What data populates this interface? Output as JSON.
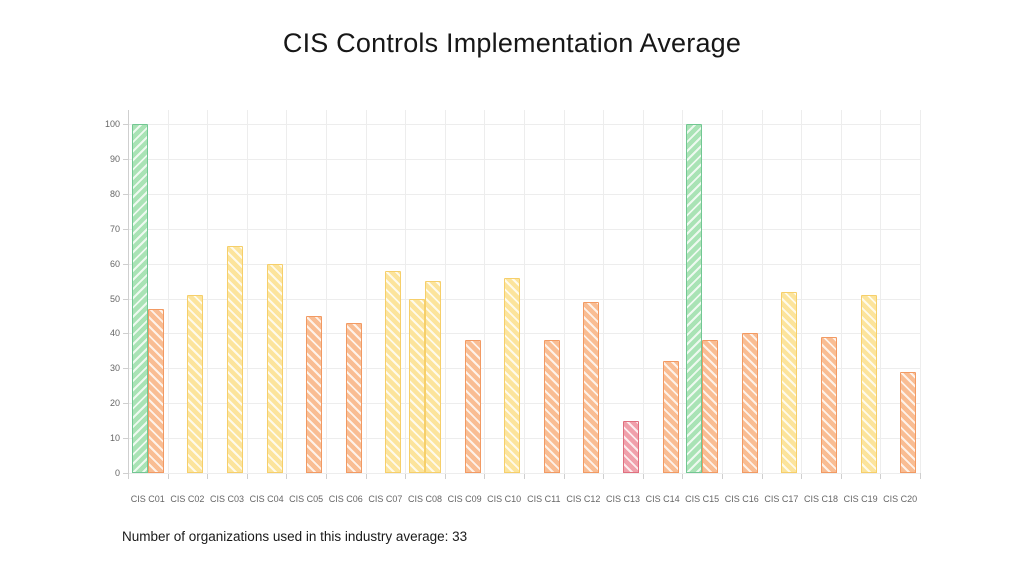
{
  "footer": {
    "note": "Number of organizations used in this industry average: 33"
  },
  "chart_data": {
    "type": "bar",
    "title": "CIS Controls Implementation Average",
    "xlabel": "",
    "ylabel": "",
    "ylim": [
      0,
      100
    ],
    "yticks": [
      0,
      10,
      20,
      30,
      40,
      50,
      60,
      70,
      80,
      90,
      100
    ],
    "grid": true,
    "legend": "none",
    "categories": [
      "CIS C01",
      "CIS C02",
      "CIS C03",
      "CIS C04",
      "CIS C05",
      "CIS C06",
      "CIS C07",
      "CIS C08",
      "CIS C09",
      "CIS C10",
      "CIS C11",
      "CIS C12",
      "CIS C13",
      "CIS C14",
      "CIS C15",
      "CIS C16",
      "CIS C17",
      "CIS C18",
      "CIS C19",
      "CIS C20"
    ],
    "series": [
      {
        "name": "series-1",
        "position": "left",
        "values": [
          100,
          null,
          null,
          null,
          null,
          null,
          null,
          50,
          null,
          null,
          null,
          null,
          null,
          null,
          100,
          null,
          null,
          null,
          null,
          null
        ],
        "colors": [
          "green",
          null,
          null,
          null,
          null,
          null,
          null,
          "yellow",
          null,
          null,
          null,
          null,
          null,
          null,
          "green",
          null,
          null,
          null,
          null,
          null
        ]
      },
      {
        "name": "series-2",
        "position": "right",
        "values": [
          47,
          51,
          65,
          60,
          45,
          43,
          58,
          55,
          38,
          56,
          38,
          49,
          15,
          32,
          38,
          40,
          52,
          39,
          51,
          29
        ],
        "colors": [
          "orange",
          "yellow",
          "yellow",
          "yellow",
          "orange",
          "orange",
          "yellow",
          "yellow",
          "orange",
          "yellow",
          "orange",
          "orange",
          "pink",
          "orange",
          "orange",
          "orange",
          "yellow",
          "orange",
          "yellow",
          "orange"
        ]
      }
    ],
    "palette": {
      "green": {
        "fill": "#a9e3b5",
        "border": "#72c793",
        "hatch": "forward"
      },
      "yellow": {
        "fill": "#fce49c",
        "border": "#f6cf6a",
        "hatch": "backward"
      },
      "orange": {
        "fill": "#f9bd93",
        "border": "#f29a63",
        "hatch": "backward"
      },
      "pink": {
        "fill": "#f0a0ab",
        "border": "#e0707f",
        "hatch": "backward"
      }
    }
  }
}
